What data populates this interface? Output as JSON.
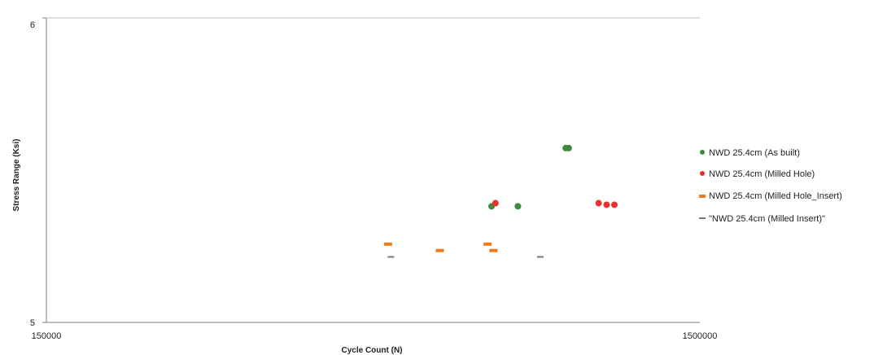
{
  "chart_data": {
    "type": "scatter",
    "title": "",
    "xlabel": "Cycle Count (N)",
    "ylabel": "Stress Range (Ksi)",
    "x_scale": "log",
    "y_scale": "log",
    "xlim": [
      150000,
      1500000
    ],
    "ylim": [
      5,
      6
    ],
    "x_ticks": [
      "150000",
      "1500000"
    ],
    "y_ticks": [
      "5",
      "6"
    ],
    "grid": false,
    "legend_position": "right",
    "series": [
      {
        "name": "NWD 25.4cm (As built)",
        "color": "#3e8a3e",
        "marker": "circle",
        "points": [
          {
            "x": 720000,
            "y": 5.36
          },
          {
            "x": 790000,
            "y": 5.36
          },
          {
            "x": 935000,
            "y": 5.55
          },
          {
            "x": 945000,
            "y": 5.55
          }
        ]
      },
      {
        "name": "NWD 25.4cm (Milled Hole)",
        "color": "#e8312c",
        "marker": "circle",
        "points": [
          {
            "x": 730000,
            "y": 5.37
          },
          {
            "x": 1050000,
            "y": 5.37
          },
          {
            "x": 1080000,
            "y": 5.365
          },
          {
            "x": 1110000,
            "y": 5.365
          }
        ]
      },
      {
        "name": "NWD 25.4cm (Milled Hole_Insert)",
        "color": "#f07a1a",
        "marker": "dash",
        "points": [
          {
            "x": 500000,
            "y": 5.24
          },
          {
            "x": 710000,
            "y": 5.24
          },
          {
            "x": 600000,
            "y": 5.22
          },
          {
            "x": 725000,
            "y": 5.22
          }
        ]
      },
      {
        "name": "\"NWD 25.4cm (Milled Insert)\"",
        "color": "#777777",
        "marker": "line",
        "points": [
          {
            "x": 505000,
            "y": 5.2
          },
          {
            "x": 855000,
            "y": 5.2
          }
        ]
      }
    ]
  }
}
